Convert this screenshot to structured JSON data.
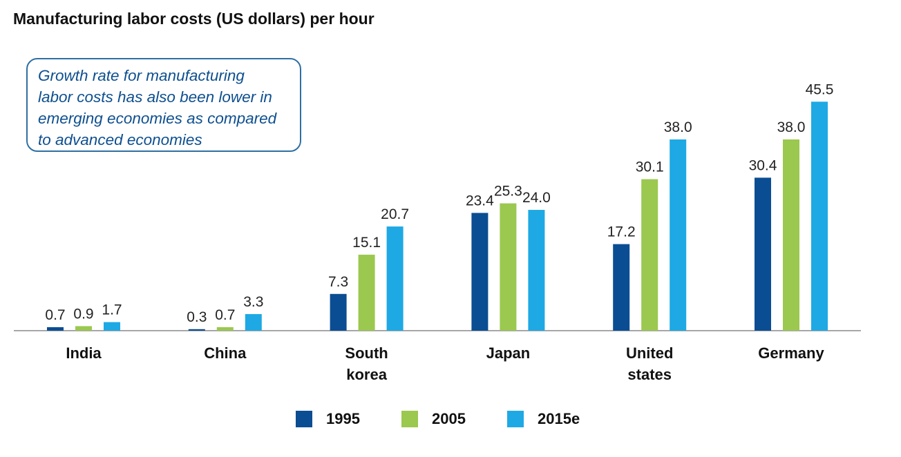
{
  "chart_data": {
    "type": "bar",
    "title": "Manufacturing labor costs (US dollars) per hour",
    "annotation": [
      "Growth rate for manufacturing",
      "labor costs has also been lower in",
      "emerging economies as compared",
      "to advanced economies"
    ],
    "categories": [
      [
        "India"
      ],
      [
        "China"
      ],
      [
        "South",
        "korea"
      ],
      [
        "Japan"
      ],
      [
        "United",
        "states"
      ],
      [
        "Germany"
      ]
    ],
    "series": [
      {
        "name": "1995",
        "color": "#0b4d92",
        "values": [
          0.7,
          0.3,
          7.3,
          23.4,
          17.2,
          30.4
        ],
        "labels": [
          "0.7",
          "0.3",
          "7.3",
          "23.4",
          "17.2",
          "30.4"
        ]
      },
      {
        "name": "2005",
        "color": "#9bc84f",
        "values": [
          0.9,
          0.7,
          15.1,
          25.3,
          30.1,
          38.0
        ],
        "labels": [
          "0.9",
          "0.7",
          "15.1",
          "25.3",
          "30.1",
          "38.0"
        ]
      },
      {
        "name": "2015e",
        "color": "#1ea9e4",
        "values": [
          1.7,
          3.3,
          20.7,
          24.0,
          38.0,
          45.5
        ],
        "labels": [
          "1.7",
          "3.3",
          "20.7",
          "24.0",
          "38.0",
          "45.5"
        ]
      }
    ],
    "ylim": [
      0,
      50
    ],
    "xlabel": "",
    "ylabel": "",
    "grid": false,
    "legend_position": "bottom"
  }
}
